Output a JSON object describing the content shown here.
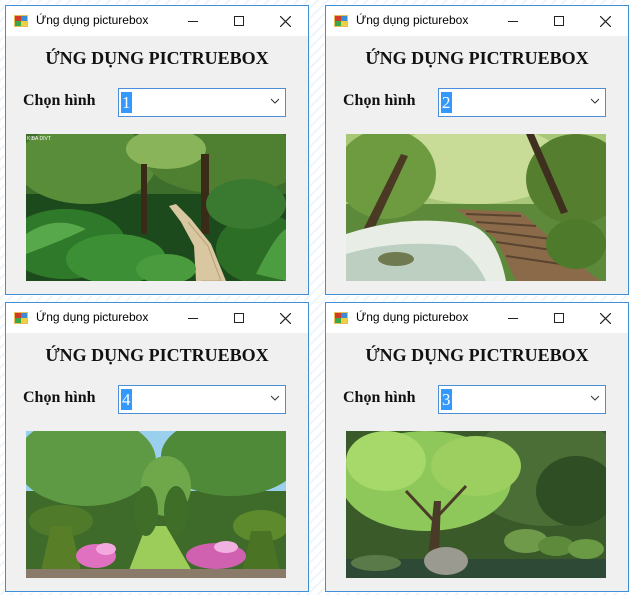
{
  "windows": [
    {
      "title": "Ứng dụng picturebox",
      "heading": "ỨNG DỤNG PICTRUEBOX",
      "select_label": "Chọn hình",
      "selected_value": "1",
      "image": "forest-path-ferns",
      "watermark": "KIBA DIVT"
    },
    {
      "title": "Ứng dụng picturebox",
      "heading": "ỨNG DỤNG PICTRUEBOX",
      "select_label": "Chọn hình",
      "selected_value": "2",
      "image": "forest-stream-boardwalk"
    },
    {
      "title": "Ứng dụng picturebox",
      "heading": "ỨNG DỤNG PICTRUEBOX",
      "select_label": "Chọn hình",
      "selected_value": "4",
      "image": "topiary-garden"
    },
    {
      "title": "Ứng dụng picturebox",
      "heading": "ỨNG DỤNG PICTRUEBOX",
      "select_label": "Chọn hình",
      "selected_value": "3",
      "image": "japanese-maple-garden"
    }
  ],
  "colors": {
    "window_border": "#3f8fd6",
    "selection": "#3399ff",
    "form_bg": "#f0f0f0"
  }
}
